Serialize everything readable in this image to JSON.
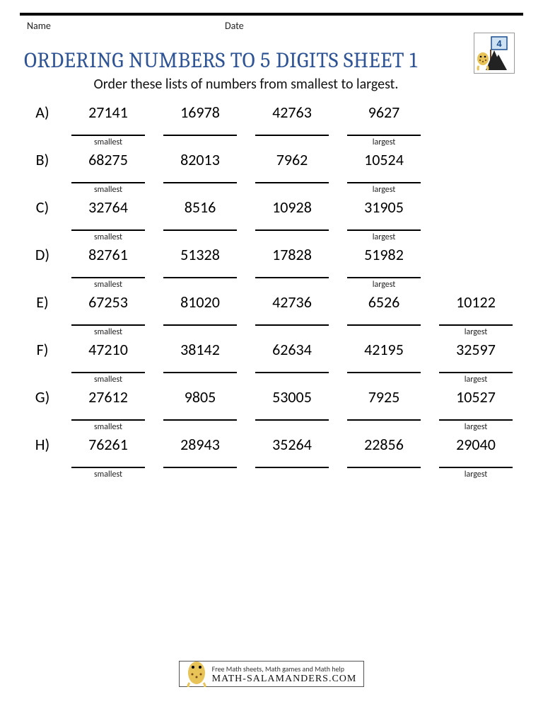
{
  "header": {
    "name_label": "Name",
    "date_label": "Date",
    "logo_number": "4"
  },
  "title": "ORDERING NUMBERS TO 5 DIGITS SHEET 1",
  "instructions": "Order these lists of numbers from smallest to largest.",
  "labels": {
    "smallest": "smallest",
    "largest": "largest"
  },
  "problems": [
    {
      "letter": "A)",
      "numbers": [
        "27141",
        "16978",
        "42763",
        "9627"
      ]
    },
    {
      "letter": "B)",
      "numbers": [
        "68275",
        "82013",
        "7962",
        "10524"
      ]
    },
    {
      "letter": "C)",
      "numbers": [
        "32764",
        "8516",
        "10928",
        "31905"
      ]
    },
    {
      "letter": "D)",
      "numbers": [
        "82761",
        "51328",
        "17828",
        "51982"
      ]
    },
    {
      "letter": "E)",
      "numbers": [
        "67253",
        "81020",
        "42736",
        "6526",
        "10122"
      ]
    },
    {
      "letter": "F)",
      "numbers": [
        "47210",
        "38142",
        "62634",
        "42195",
        "32597"
      ]
    },
    {
      "letter": "G)",
      "numbers": [
        "27612",
        "9805",
        "53005",
        "7925",
        "10527"
      ]
    },
    {
      "letter": "H)",
      "numbers": [
        "76261",
        "28943",
        "35264",
        "22856",
        "29040"
      ]
    }
  ],
  "footer": {
    "tagline": "Free Math sheets, Math games and Math help",
    "site": "MATH-SALAMANDERS.COM"
  },
  "colors": {
    "title": "#2f5496",
    "text": "#000000",
    "rule": "#000000"
  }
}
